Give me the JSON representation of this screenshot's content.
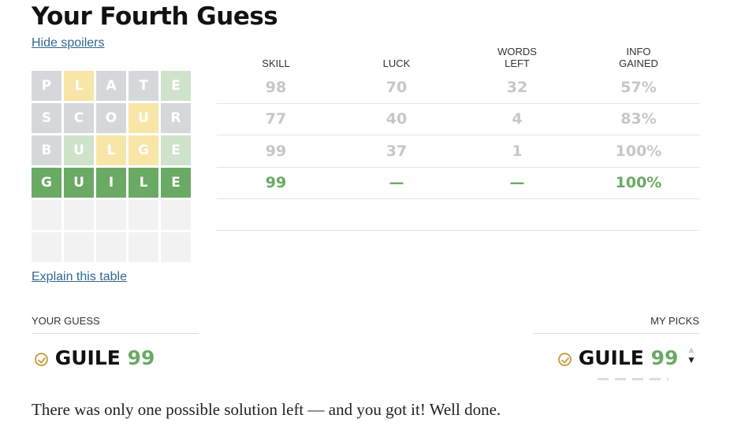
{
  "title": "Your Fourth Guess",
  "hide_spoilers": "Hide spoilers",
  "explain": "Explain this table",
  "grid": [
    [
      {
        "l": "P",
        "s": "gray"
      },
      {
        "l": "L",
        "s": "yel"
      },
      {
        "l": "A",
        "s": "gray"
      },
      {
        "l": "T",
        "s": "gray"
      },
      {
        "l": "E",
        "s": "lg"
      }
    ],
    [
      {
        "l": "S",
        "s": "gray"
      },
      {
        "l": "C",
        "s": "gray"
      },
      {
        "l": "O",
        "s": "gray"
      },
      {
        "l": "U",
        "s": "yel"
      },
      {
        "l": "R",
        "s": "gray"
      }
    ],
    [
      {
        "l": "B",
        "s": "gray"
      },
      {
        "l": "U",
        "s": "lg"
      },
      {
        "l": "L",
        "s": "yel"
      },
      {
        "l": "G",
        "s": "yel"
      },
      {
        "l": "E",
        "s": "lg"
      }
    ],
    [
      {
        "l": "G",
        "s": "green"
      },
      {
        "l": "U",
        "s": "green"
      },
      {
        "l": "I",
        "s": "green"
      },
      {
        "l": "L",
        "s": "green"
      },
      {
        "l": "E",
        "s": "green"
      }
    ],
    [
      {
        "l": "",
        "s": "empty"
      },
      {
        "l": "",
        "s": "empty"
      },
      {
        "l": "",
        "s": "empty"
      },
      {
        "l": "",
        "s": "empty"
      },
      {
        "l": "",
        "s": "empty"
      }
    ],
    [
      {
        "l": "",
        "s": "empty"
      },
      {
        "l": "",
        "s": "empty"
      },
      {
        "l": "",
        "s": "empty"
      },
      {
        "l": "",
        "s": "empty"
      },
      {
        "l": "",
        "s": "empty"
      }
    ]
  ],
  "table": {
    "headers": [
      "SKILL",
      "LUCK",
      "WORDS\nLEFT",
      "INFO\nGAINED"
    ],
    "rows": [
      [
        "98",
        "70",
        "32",
        "57%"
      ],
      [
        "77",
        "40",
        "4",
        "83%"
      ],
      [
        "99",
        "37",
        "1",
        "100%"
      ],
      [
        "99",
        "—",
        "—",
        "100%"
      ]
    ]
  },
  "your_guess": {
    "label": "YOUR GUESS",
    "word": "GUILE",
    "score": "99"
  },
  "my_picks": {
    "label": "MY PICKS",
    "word": "GUILE",
    "score": "99"
  },
  "message": "There was only one possible solution left — and you got it! Well done.",
  "colors": {
    "green": "#6aaa64",
    "yellow": "#f8e6a8",
    "gray": "#d3d6da",
    "link": "#326891"
  }
}
